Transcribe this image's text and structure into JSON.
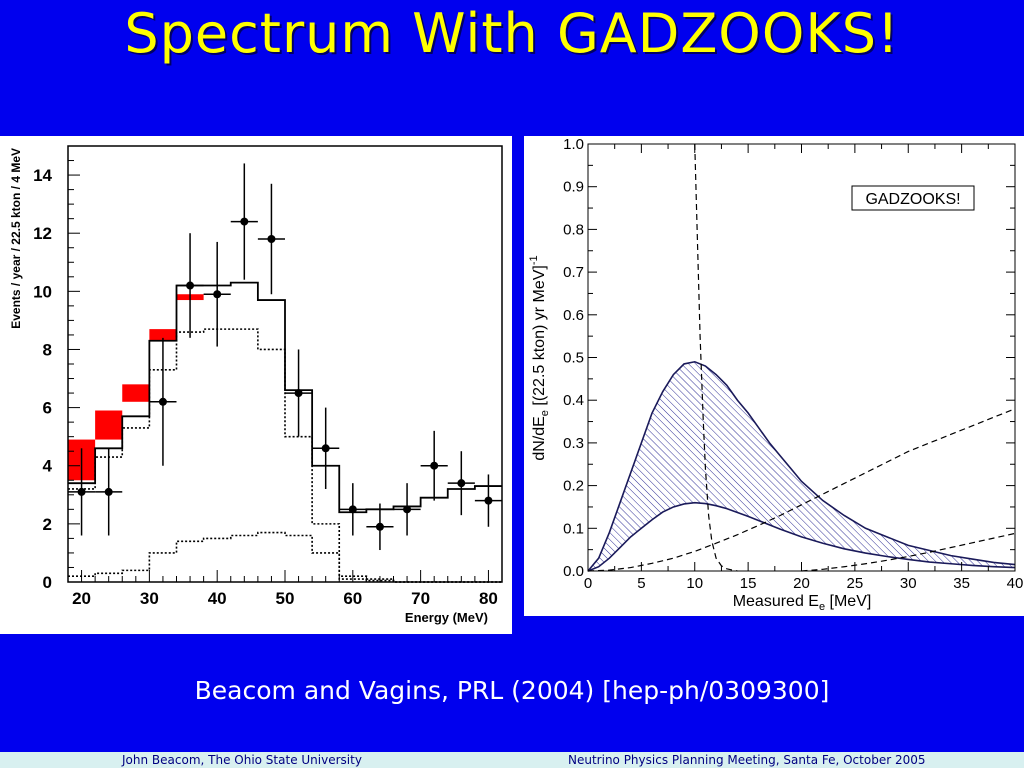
{
  "slide": {
    "title": "Spectrum With GADZOOKS!",
    "citation": "Beacom and Vagins, PRL (2004) [hep-ph/0309300]",
    "footer_left": "John Beacom, The Ohio State University",
    "footer_right": "Neutrino Physics Planning Meeting, Santa Fe, October 2005",
    "colors": {
      "background": "#0000ee",
      "title": "#ffff00",
      "band": "#ff0000",
      "hatch": "#1a1a8c"
    }
  },
  "chart_data": [
    {
      "type": "bar",
      "xlabel": "Energy (MeV)",
      "ylabel": "Events / year / 22.5 kton / 4 MeV",
      "xlim": [
        18,
        82
      ],
      "ylim": [
        0,
        15
      ],
      "xticks": [
        20,
        30,
        40,
        50,
        60,
        70,
        80
      ],
      "yticks": [
        0,
        2,
        4,
        6,
        8,
        10,
        12,
        14
      ],
      "bin_edges": [
        18,
        22,
        26,
        30,
        34,
        38,
        42,
        46,
        50,
        54,
        58,
        62,
        66,
        70,
        74,
        78,
        82
      ],
      "total_histogram": [
        3.4,
        4.6,
        5.7,
        8.3,
        10.2,
        10.2,
        10.3,
        9.7,
        6.6,
        4.0,
        2.4,
        2.5,
        2.6,
        2.9,
        3.2,
        3.3
      ],
      "dotted_histogram": [
        0.2,
        0.3,
        0.4,
        1.0,
        1.4,
        1.5,
        1.6,
        1.7,
        1.6,
        1.0,
        0.1,
        0.05,
        0,
        0,
        0,
        0
      ],
      "dotted_histogram_2": [
        3.2,
        4.3,
        5.3,
        7.3,
        8.6,
        8.7,
        8.7,
        8.0,
        5.0,
        2.0,
        0.2,
        0.1,
        0,
        0,
        0,
        0
      ],
      "red_bands": [
        {
          "x0": 18,
          "x1": 22,
          "y0": 3.5,
          "y1": 4.9
        },
        {
          "x0": 22,
          "x1": 26,
          "y0": 4.9,
          "y1": 5.9
        },
        {
          "x0": 26,
          "x1": 30,
          "y0": 6.2,
          "y1": 6.8
        },
        {
          "x0": 30,
          "x1": 34,
          "y0": 8.3,
          "y1": 8.7
        },
        {
          "x0": 34,
          "x1": 38,
          "y0": 9.7,
          "y1": 9.9
        }
      ],
      "data_points": {
        "x": [
          20,
          24,
          32,
          36,
          40,
          44,
          48,
          52,
          56,
          60,
          64,
          68,
          72,
          76,
          80
        ],
        "y": [
          3.1,
          3.1,
          6.2,
          10.2,
          9.9,
          12.4,
          11.8,
          6.5,
          4.6,
          2.5,
          1.9,
          2.5,
          4.0,
          3.4,
          2.8
        ],
        "yerr": [
          1.5,
          1.5,
          2.2,
          1.8,
          1.8,
          2.0,
          1.9,
          1.5,
          1.4,
          0.9,
          0.8,
          0.9,
          1.2,
          1.1,
          0.9
        ]
      }
    },
    {
      "type": "line",
      "xlabel": "Measured E",
      "xlabel_sub": "e",
      "xlabel_unit": "[MeV]",
      "ylabel": "dN/dE",
      "ylabel_sub": "e",
      "ylabel_unit": "[(22.5 kton) yr MeV]",
      "ylabel_sup": "-1",
      "legend": "GADZOOKS!",
      "xlim": [
        0,
        40
      ],
      "ylim": [
        0,
        1.0
      ],
      "xticks": [
        "0",
        "5",
        "10",
        "15",
        "20",
        "25",
        "30",
        "35",
        "40"
      ],
      "yticks": [
        "0.0",
        "0.1",
        "0.2",
        "0.3",
        "0.4",
        "0.5",
        "0.6",
        "0.7",
        "0.8",
        "0.9",
        "1.0"
      ],
      "band_upper": {
        "x": [
          0,
          1,
          2,
          3,
          4,
          5,
          6,
          7,
          8,
          9,
          10,
          11,
          12,
          13,
          14,
          15,
          16,
          17,
          18,
          19,
          20,
          22,
          24,
          26,
          28,
          30,
          32,
          34,
          36,
          38,
          40
        ],
        "y": [
          0,
          0.03,
          0.09,
          0.16,
          0.23,
          0.3,
          0.37,
          0.42,
          0.46,
          0.485,
          0.49,
          0.48,
          0.46,
          0.435,
          0.4,
          0.37,
          0.335,
          0.3,
          0.27,
          0.24,
          0.21,
          0.165,
          0.13,
          0.1,
          0.08,
          0.06,
          0.048,
          0.036,
          0.028,
          0.02,
          0.015
        ]
      },
      "band_lower": {
        "x": [
          0,
          1,
          2,
          3,
          4,
          5,
          6,
          7,
          8,
          9,
          10,
          11,
          12,
          13,
          14,
          15,
          16,
          17,
          18,
          19,
          20,
          22,
          24,
          26,
          28,
          30,
          32,
          34,
          36,
          38,
          40
        ],
        "y": [
          0,
          0.01,
          0.03,
          0.055,
          0.08,
          0.1,
          0.12,
          0.138,
          0.15,
          0.157,
          0.16,
          0.158,
          0.153,
          0.146,
          0.137,
          0.128,
          0.118,
          0.108,
          0.098,
          0.089,
          0.08,
          0.065,
          0.052,
          0.042,
          0.034,
          0.027,
          0.021,
          0.017,
          0.013,
          0.01,
          0.008
        ]
      },
      "dashed_steep": {
        "x": [
          10.0,
          10.2,
          10.5,
          10.8,
          11.0,
          11.3,
          11.6,
          12.0,
          12.5,
          13.0,
          14.0
        ],
        "y": [
          1.0,
          0.82,
          0.55,
          0.35,
          0.24,
          0.13,
          0.07,
          0.03,
          0.012,
          0.005,
          0.0
        ]
      },
      "dashed_rising": {
        "x": [
          0,
          2,
          4,
          6,
          8,
          10,
          12,
          14,
          16,
          18,
          20,
          22,
          24,
          26,
          28,
          30,
          32,
          34,
          36,
          38,
          40
        ],
        "y": [
          0,
          0.002,
          0.008,
          0.018,
          0.03,
          0.046,
          0.065,
          0.085,
          0.107,
          0.13,
          0.155,
          0.18,
          0.205,
          0.23,
          0.255,
          0.28,
          0.3,
          0.32,
          0.34,
          0.36,
          0.38
        ]
      },
      "dashed_low": {
        "x": [
          20,
          22,
          24,
          26,
          28,
          30,
          32,
          34,
          36,
          38,
          40
        ],
        "y": [
          0,
          0.004,
          0.01,
          0.017,
          0.025,
          0.034,
          0.044,
          0.055,
          0.066,
          0.077,
          0.088
        ]
      }
    }
  ]
}
